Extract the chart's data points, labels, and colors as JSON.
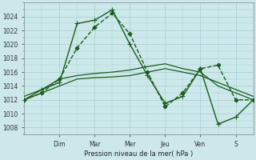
{
  "bg_color": "#cce8ea",
  "grid_color": "#a8cdd0",
  "line_color": "#1a5c1a",
  "ylabel": "Pression niveau de la mer( hPa )",
  "ylim": [
    1007,
    1026
  ],
  "yticks": [
    1008,
    1010,
    1012,
    1014,
    1016,
    1018,
    1020,
    1022,
    1024
  ],
  "day_labels": [
    "Dim",
    "Mar",
    "Mer",
    "Jeu",
    "Ven",
    "S"
  ],
  "day_x": [
    2.0,
    4.0,
    6.0,
    8.0,
    10.0,
    12.0
  ],
  "xlim": [
    0,
    13
  ],
  "series": [
    {
      "x": [
        0,
        1,
        2,
        3,
        4,
        5,
        6,
        7,
        8,
        9,
        10,
        11,
        12,
        13
      ],
      "y": [
        1012.0,
        1013.0,
        1014.0,
        1015.0,
        1015.2,
        1015.3,
        1015.5,
        1016.0,
        1016.5,
        1016.0,
        1015.5,
        1014.5,
        1013.5,
        1012.5
      ],
      "ls": "-",
      "lw": 0.9,
      "marker": null,
      "ms": 0
    },
    {
      "x": [
        0,
        1,
        2,
        3,
        4,
        5,
        6,
        7,
        8,
        9,
        10,
        11,
        12,
        13
      ],
      "y": [
        1012.5,
        1013.5,
        1015.0,
        1015.5,
        1015.8,
        1016.0,
        1016.3,
        1016.8,
        1017.2,
        1016.5,
        1016.0,
        1014.0,
        1013.0,
        1012.0
      ],
      "ls": "-",
      "lw": 0.9,
      "marker": null,
      "ms": 0
    },
    {
      "x": [
        0,
        1,
        2,
        3,
        4,
        5,
        6,
        7,
        8,
        9,
        10,
        11,
        12,
        13
      ],
      "y": [
        1012.0,
        1013.0,
        1015.0,
        1019.5,
        1022.5,
        1024.5,
        1021.5,
        1016.0,
        1011.0,
        1013.0,
        1016.5,
        1017.0,
        1012.0,
        1012.0
      ],
      "ls": "--",
      "lw": 1.0,
      "marker": "D",
      "ms": 2.5
    },
    {
      "x": [
        0,
        1,
        2,
        3,
        4,
        5,
        6,
        7,
        8,
        9,
        10,
        11,
        12,
        13
      ],
      "y": [
        1012.0,
        1013.5,
        1014.5,
        1023.0,
        1023.5,
        1025.0,
        1020.0,
        1015.5,
        1011.5,
        1012.5,
        1016.5,
        1008.5,
        1009.5,
        1012.0
      ],
      "ls": "-",
      "lw": 1.0,
      "marker": "+",
      "ms": 5
    }
  ]
}
